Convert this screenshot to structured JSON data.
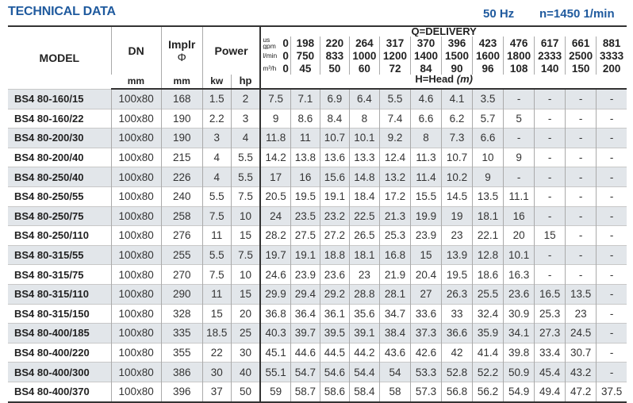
{
  "header": {
    "title": "TECHNICAL DATA",
    "frequency": "50 Hz",
    "speed": "n=1450 1/min"
  },
  "columns": {
    "model": "MODEL",
    "dn": "DN",
    "dn_unit": "mm",
    "impeller": "Implr",
    "impeller_symbol": "Φ",
    "impeller_unit": "mm",
    "power": "Power",
    "kw": "kw",
    "hp": "hp",
    "delivery": "Q=DELIVERY",
    "head": "H=Head",
    "head_unit": "(m)",
    "unit_gpm_top": "us",
    "unit_gpm": "gpm",
    "unit_lmin": "l/min",
    "unit_m3h": "m³/h"
  },
  "flow": {
    "gpm": [
      "0",
      "198",
      "220",
      "264",
      "317",
      "370",
      "396",
      "423",
      "476",
      "617",
      "661",
      "881"
    ],
    "lmin": [
      "0",
      "750",
      "833",
      "1000",
      "1200",
      "1400",
      "1500",
      "1600",
      "1800",
      "2333",
      "2500",
      "3333"
    ],
    "m3h": [
      "0",
      "45",
      "50",
      "60",
      "72",
      "84",
      "90",
      "96",
      "108",
      "140",
      "150",
      "200"
    ]
  },
  "rows": [
    {
      "model": "BS4 80-160/15",
      "dn": "100x80",
      "impeller": "168",
      "kw": "1.5",
      "hp": "2",
      "head": [
        "7.5",
        "7.1",
        "6.9",
        "6.4",
        "5.5",
        "4.6",
        "4.1",
        "3.5",
        "-",
        "-",
        "-",
        "-"
      ]
    },
    {
      "model": "BS4 80-160/22",
      "dn": "100x80",
      "impeller": "190",
      "kw": "2.2",
      "hp": "3",
      "head": [
        "9",
        "8.6",
        "8.4",
        "8",
        "7.4",
        "6.6",
        "6.2",
        "5.7",
        "5",
        "-",
        "-",
        "-"
      ]
    },
    {
      "model": "BS4 80-200/30",
      "dn": "100x80",
      "impeller": "190",
      "kw": "3",
      "hp": "4",
      "head": [
        "11.8",
        "11",
        "10.7",
        "10.1",
        "9.2",
        "8",
        "7.3",
        "6.6",
        "-",
        "-",
        "-",
        "-"
      ]
    },
    {
      "model": "BS4 80-200/40",
      "dn": "100x80",
      "impeller": "215",
      "kw": "4",
      "hp": "5.5",
      "head": [
        "14.2",
        "13.8",
        "13.6",
        "13.3",
        "12.4",
        "11.3",
        "10.7",
        "10",
        "9",
        "-",
        "-",
        "-"
      ]
    },
    {
      "model": "BS4 80-250/40",
      "dn": "100x80",
      "impeller": "226",
      "kw": "4",
      "hp": "5.5",
      "head": [
        "17",
        "16",
        "15.6",
        "14.8",
        "13.2",
        "11.4",
        "10.2",
        "9",
        "-",
        "-",
        "-",
        "-"
      ]
    },
    {
      "model": "BS4 80-250/55",
      "dn": "100x80",
      "impeller": "240",
      "kw": "5.5",
      "hp": "7.5",
      "head": [
        "20.5",
        "19.5",
        "19.1",
        "18.4",
        "17.2",
        "15.5",
        "14.5",
        "13.5",
        "11.1",
        "-",
        "-",
        "-"
      ]
    },
    {
      "model": "BS4 80-250/75",
      "dn": "100x80",
      "impeller": "258",
      "kw": "7.5",
      "hp": "10",
      "head": [
        "24",
        "23.5",
        "23.2",
        "22.5",
        "21.3",
        "19.9",
        "19",
        "18.1",
        "16",
        "-",
        "-",
        "-"
      ]
    },
    {
      "model": "BS4 80-250/110",
      "dn": "100x80",
      "impeller": "276",
      "kw": "11",
      "hp": "15",
      "head": [
        "28.2",
        "27.5",
        "27.2",
        "26.5",
        "25.3",
        "23.9",
        "23",
        "22.1",
        "20",
        "15",
        "-",
        "-"
      ]
    },
    {
      "model": "BS4 80-315/55",
      "dn": "100x80",
      "impeller": "255",
      "kw": "5.5",
      "hp": "7.5",
      "head": [
        "19.7",
        "19.1",
        "18.8",
        "18.1",
        "16.8",
        "15",
        "13.9",
        "12.8",
        "10.1",
        "-",
        "-",
        "-"
      ]
    },
    {
      "model": "BS4 80-315/75",
      "dn": "100x80",
      "impeller": "270",
      "kw": "7.5",
      "hp": "10",
      "head": [
        "24.6",
        "23.9",
        "23.6",
        "23",
        "21.9",
        "20.4",
        "19.5",
        "18.6",
        "16.3",
        "-",
        "-",
        "-"
      ]
    },
    {
      "model": "BS4 80-315/110",
      "dn": "100x80",
      "impeller": "290",
      "kw": "11",
      "hp": "15",
      "head": [
        "29.9",
        "29.4",
        "29.2",
        "28.8",
        "28.1",
        "27",
        "26.3",
        "25.5",
        "23.6",
        "16.5",
        "13.5",
        "-"
      ]
    },
    {
      "model": "BS4 80-315/150",
      "dn": "100x80",
      "impeller": "328",
      "kw": "15",
      "hp": "20",
      "head": [
        "36.8",
        "36.4",
        "36.1",
        "35.6",
        "34.7",
        "33.6",
        "33",
        "32.4",
        "30.9",
        "25.3",
        "23",
        "-"
      ]
    },
    {
      "model": "BS4 80-400/185",
      "dn": "100x80",
      "impeller": "335",
      "kw": "18.5",
      "hp": "25",
      "head": [
        "40.3",
        "39.7",
        "39.5",
        "39.1",
        "38.4",
        "37.3",
        "36.6",
        "35.9",
        "34.1",
        "27.3",
        "24.5",
        "-"
      ]
    },
    {
      "model": "BS4 80-400/220",
      "dn": "100x80",
      "impeller": "355",
      "kw": "22",
      "hp": "30",
      "head": [
        "45.1",
        "44.6",
        "44.5",
        "44.2",
        "43.6",
        "42.6",
        "42",
        "41.4",
        "39.8",
        "33.4",
        "30.7",
        "-"
      ]
    },
    {
      "model": "BS4 80-400/300",
      "dn": "100x80",
      "impeller": "386",
      "kw": "30",
      "hp": "40",
      "head": [
        "55.1",
        "54.7",
        "54.6",
        "54.4",
        "54",
        "53.3",
        "52.8",
        "52.2",
        "50.9",
        "45.4",
        "43.2",
        "-"
      ]
    },
    {
      "model": "BS4 80-400/370",
      "dn": "100x80",
      "impeller": "396",
      "kw": "37",
      "hp": "50",
      "head": [
        "59",
        "58.7",
        "58.6",
        "58.4",
        "58",
        "57.3",
        "56.8",
        "56.2",
        "54.9",
        "49.4",
        "47.2",
        "37.5"
      ]
    }
  ],
  "colors": {
    "title": "#1f5a9e",
    "shaded_row": "#e2e6ea"
  }
}
